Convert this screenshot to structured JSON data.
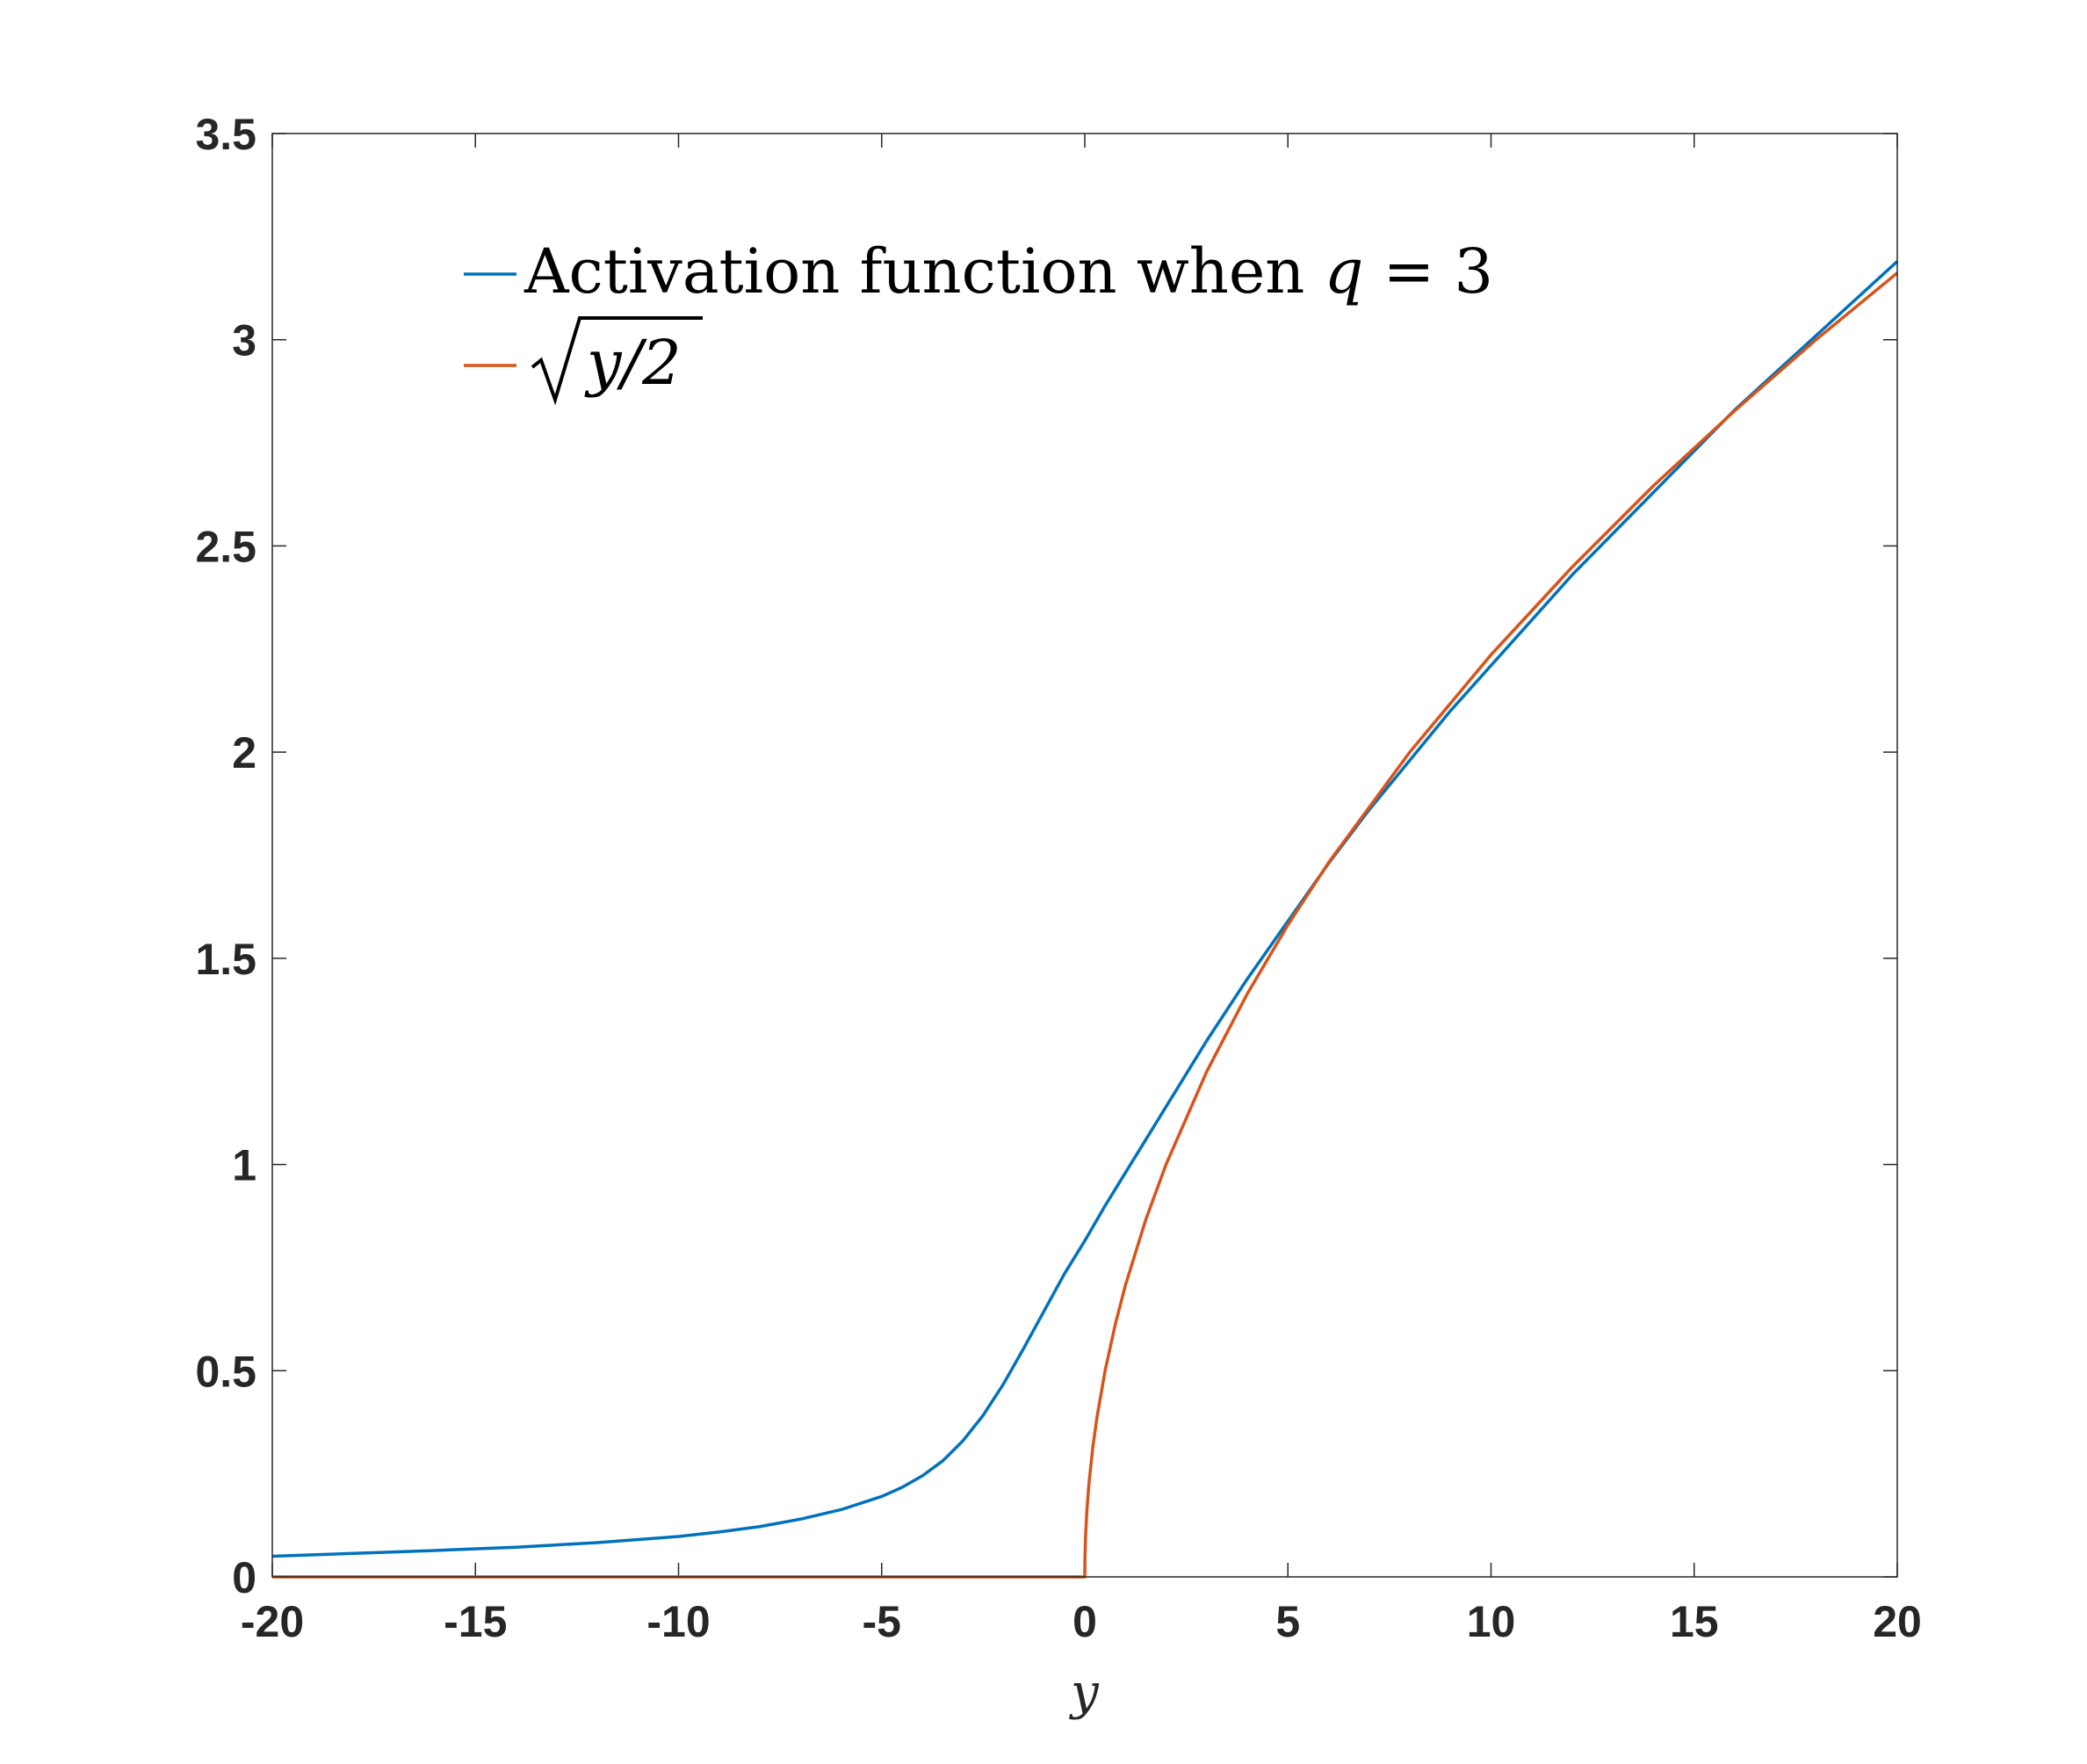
{
  "chart_data": {
    "type": "line",
    "title": "",
    "xlabel": "y",
    "ylabel": "",
    "xlim": [
      -20,
      20
    ],
    "ylim": [
      0,
      3.5
    ],
    "x_ticks": [
      -20,
      -15,
      -10,
      -5,
      0,
      5,
      10,
      15,
      20
    ],
    "y_ticks": [
      0,
      0.5,
      1,
      1.5,
      2,
      2.5,
      3,
      3.5
    ],
    "x_tick_labels": [
      "-20",
      "-15",
      "-10",
      "-5",
      "0",
      "5",
      "10",
      "15",
      "20"
    ],
    "y_tick_labels": [
      "0",
      "0.5",
      "1",
      "1.5",
      "2",
      "2.5",
      "3",
      "3.5"
    ],
    "grid": false,
    "legend_position": "top-left",
    "series": [
      {
        "name": "Activation function when q = 3",
        "legend_parts": {
          "prefix": "Activation function when ",
          "var": "q",
          "suffix": " = 3"
        },
        "color": "#0072BD",
        "x": [
          -20,
          -18,
          -16,
          -14,
          -12,
          -10,
          -9,
          -8,
          -7,
          -6,
          -5,
          -4.5,
          -4,
          -3.5,
          -3,
          -2.5,
          -2,
          -1.5,
          -1,
          -0.5,
          0,
          0.5,
          1,
          1.5,
          2,
          2.5,
          3,
          4,
          5,
          6,
          7,
          8,
          9,
          10,
          12,
          14,
          16,
          18,
          20
        ],
        "y": [
          0.05,
          0.057,
          0.064,
          0.072,
          0.083,
          0.098,
          0.109,
          0.122,
          0.14,
          0.163,
          0.195,
          0.217,
          0.245,
          0.281,
          0.33,
          0.392,
          0.468,
          0.555,
          0.645,
          0.735,
          0.815,
          0.9,
          0.98,
          1.06,
          1.14,
          1.22,
          1.3,
          1.45,
          1.59,
          1.73,
          1.86,
          1.98,
          2.1,
          2.21,
          2.43,
          2.63,
          2.83,
          3.01,
          3.19
        ]
      },
      {
        "name": "sqrt(y/2)",
        "legend_parts": {
          "radicand": "y/2"
        },
        "color": "#D95319",
        "x": [
          -20,
          0,
          0.005,
          0.02,
          0.05,
          0.1,
          0.2,
          0.3,
          0.5,
          0.75,
          1,
          1.5,
          2,
          3,
          4,
          5,
          6,
          8,
          10,
          12,
          14,
          16,
          18,
          20
        ],
        "y": [
          0,
          0,
          0.05,
          0.1,
          0.158,
          0.224,
          0.316,
          0.387,
          0.5,
          0.612,
          0.707,
          0.866,
          1,
          1.225,
          1.414,
          1.581,
          1.732,
          2,
          2.236,
          2.449,
          2.646,
          2.828,
          3,
          3.162
        ]
      }
    ]
  }
}
